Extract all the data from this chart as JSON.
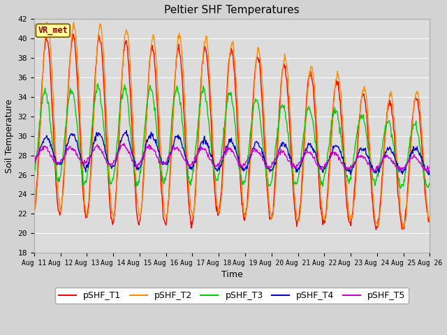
{
  "title": "Peltier SHF Temperatures",
  "xlabel": "Time",
  "ylabel": "Soil Temperature",
  "ylim": [
    18,
    42
  ],
  "yticks": [
    18,
    20,
    22,
    24,
    26,
    28,
    30,
    32,
    34,
    36,
    38,
    40,
    42
  ],
  "xtick_labels": [
    "Aug 11",
    "Aug 12",
    "Aug 13",
    "Aug 14",
    "Aug 15",
    "Aug 16",
    "Aug 17",
    "Aug 18",
    "Aug 19",
    "Aug 20",
    "Aug 21",
    "Aug 22",
    "Aug 23",
    "Aug 24",
    "Aug 25",
    "Aug 26"
  ],
  "series_names": [
    "pSHF_T1",
    "pSHF_T2",
    "pSHF_T3",
    "pSHF_T4",
    "pSHF_T5"
  ],
  "series_colors": [
    "#ff0000",
    "#ff8c00",
    "#00cc00",
    "#0000cc",
    "#cc00cc"
  ],
  "series_lw": [
    1.0,
    1.0,
    1.0,
    1.0,
    1.0
  ],
  "annotation_text": "VR_met",
  "annotation_color": "#8b0000",
  "annotation_bg": "#ffff99",
  "annotation_border": "#8b6914",
  "plot_bg_color": "#dcdcdc",
  "fig_bg_color": "#d3d3d3",
  "grid_color": "#ffffff",
  "title_fontsize": 11,
  "label_fontsize": 9,
  "tick_fontsize": 8,
  "legend_fontsize": 9
}
